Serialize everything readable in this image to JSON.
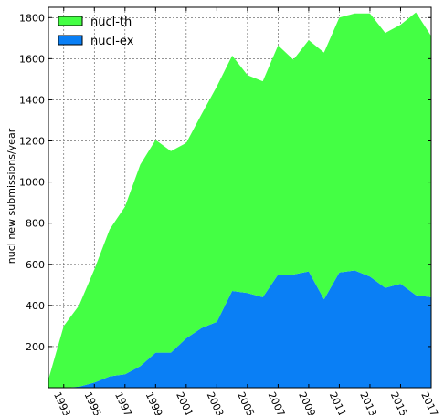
{
  "chart_data": {
    "type": "area",
    "stacked": true,
    "x": [
      1992,
      1993,
      1994,
      1995,
      1996,
      1997,
      1998,
      1999,
      2000,
      2001,
      2002,
      2003,
      2004,
      2005,
      2006,
      2007,
      2008,
      2009,
      2010,
      2011,
      2012,
      2013,
      2014,
      2015,
      2016,
      2017
    ],
    "x_tick_labels": [
      "1993",
      "1995",
      "1997",
      "1999",
      "2001",
      "2003",
      "2005",
      "2007",
      "2009",
      "2011",
      "2013",
      "2015",
      "2017"
    ],
    "y_tick_labels": [
      "200",
      "400",
      "600",
      "800",
      "1000",
      "1200",
      "1400",
      "1600",
      "1800"
    ],
    "ylabel": "nucl new submissions/year",
    "xlabel": "",
    "ylim": [
      0,
      1850
    ],
    "xlim": [
      1992,
      2017
    ],
    "grid": true,
    "legend_position": "top-left",
    "series": [
      {
        "name": "nucl-ex",
        "color": "#0a7ff5",
        "values": [
          0,
          0,
          5,
          25,
          55,
          65,
          105,
          170,
          170,
          240,
          290,
          320,
          470,
          460,
          440,
          550,
          550,
          565,
          430,
          560,
          570,
          540,
          485,
          505,
          450,
          440
        ]
      },
      {
        "name": "nucl-th",
        "color": "#44ff44",
        "values": [
          40,
          300,
          395,
          550,
          715,
          815,
          980,
          1035,
          980,
          950,
          1040,
          1145,
          1145,
          1060,
          1050,
          1115,
          1045,
          1125,
          1200,
          1240,
          1250,
          1280,
          1240,
          1260,
          1375,
          1270
        ]
      }
    ]
  }
}
